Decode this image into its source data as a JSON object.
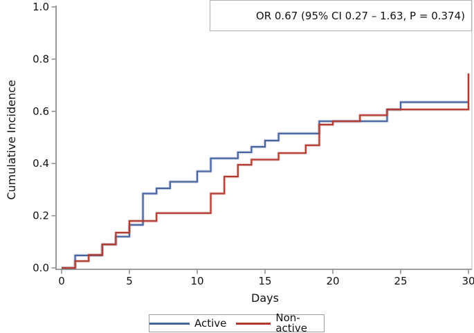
{
  "chart_data": {
    "type": "line",
    "variant": "cumulative-incidence-step-curve",
    "title": "",
    "annotation": "OR 0.67 (95% CI 0.27 – 1.63, P = 0.374)",
    "xlabel": "Days",
    "ylabel": "Cumulative Incidence",
    "xlim": [
      0,
      30
    ],
    "ylim": [
      0.0,
      1.0
    ],
    "xticks": [
      0,
      5,
      10,
      15,
      20,
      25,
      30
    ],
    "xtick_labels": [
      "0",
      "5",
      "10",
      "15",
      "20",
      "25",
      "30"
    ],
    "yticks": [
      0.0,
      0.2,
      0.4,
      0.6,
      0.8,
      1.0
    ],
    "ytick_labels": [
      "0.0",
      "0.2",
      "0.4",
      "0.6",
      "0.8",
      "1.0"
    ],
    "grid": false,
    "legend_position": "bottom-center",
    "series": [
      {
        "name": "Active",
        "color": "#47639e",
        "step": "post",
        "points": [
          [
            0,
            0.0
          ],
          [
            1,
            0.048
          ],
          [
            3,
            0.09
          ],
          [
            4,
            0.12
          ],
          [
            5,
            0.165
          ],
          [
            6,
            0.285
          ],
          [
            7,
            0.305
          ],
          [
            8,
            0.33
          ],
          [
            10,
            0.37
          ],
          [
            11,
            0.42
          ],
          [
            13,
            0.443
          ],
          [
            14,
            0.464
          ],
          [
            15,
            0.488
          ],
          [
            16,
            0.515
          ],
          [
            19,
            0.562
          ],
          [
            24,
            0.607
          ],
          [
            25,
            0.635
          ],
          [
            30,
            0.635
          ]
        ]
      },
      {
        "name": "Non-active",
        "color": "#b03a2f",
        "step": "post",
        "points": [
          [
            0,
            0.0
          ],
          [
            1,
            0.026
          ],
          [
            2,
            0.05
          ],
          [
            3,
            0.09
          ],
          [
            4,
            0.135
          ],
          [
            5,
            0.18
          ],
          [
            7,
            0.21
          ],
          [
            11,
            0.285
          ],
          [
            12,
            0.35
          ],
          [
            13,
            0.395
          ],
          [
            14,
            0.415
          ],
          [
            16,
            0.44
          ],
          [
            18,
            0.47
          ],
          [
            19,
            0.549
          ],
          [
            20,
            0.562
          ],
          [
            22,
            0.585
          ],
          [
            24,
            0.607
          ],
          [
            30,
            0.745
          ]
        ]
      }
    ]
  },
  "legend": {
    "items": [
      {
        "label": "Active",
        "color": "#47639e"
      },
      {
        "label": "Non-active",
        "color": "#b03a2f"
      }
    ]
  },
  "colors": {
    "background": "#ffffff",
    "axis": "#8f8f8f",
    "frame": "#c6c6c6",
    "annotation_border": "#b5b5b5",
    "text": "#111111",
    "halo_active": "rgba(71,99,158,0.25)",
    "halo_non_active": "rgba(176,58,47,0.25)"
  }
}
